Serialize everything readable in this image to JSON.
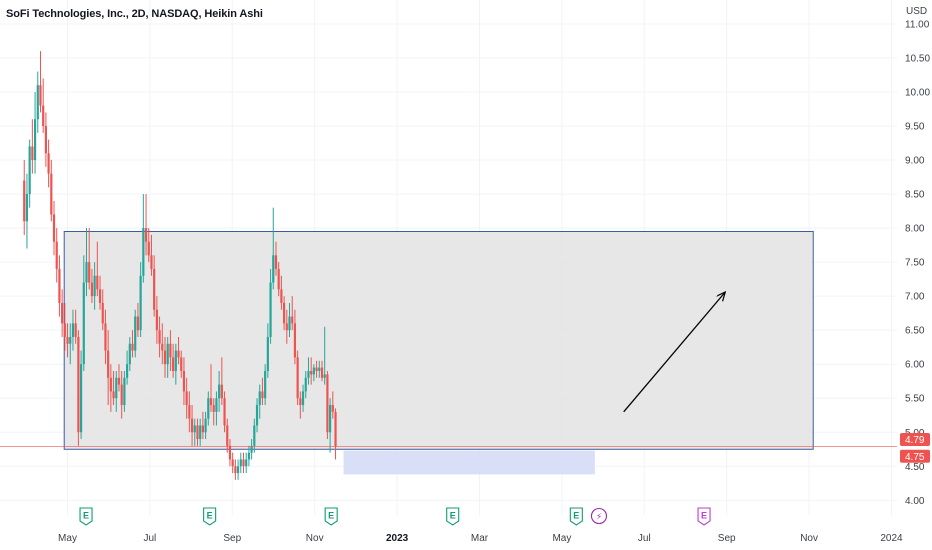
{
  "title": "SoFi Technologies, Inc., 2D, NASDAQ, Heikin Ashi",
  "colors": {
    "up": "#26a69a",
    "down": "#ef5350",
    "box_fill": "#e3e3e3",
    "box_stroke": "#3b5ba5",
    "support_fill": "#d6dcf7",
    "price_line": "#ef5350",
    "grid": "#f0f3fa"
  },
  "chart_data": {
    "type": "candlestick",
    "style": "Heikin Ashi",
    "interval": "2D",
    "currency": "USD",
    "yaxis_label": "USD",
    "ylim": [
      3.8,
      11.1
    ],
    "y_ticks": [
      "4.00",
      "4.50",
      "5.00",
      "5.50",
      "6.00",
      "6.50",
      "7.00",
      "7.50",
      "8.00",
      "8.50",
      "9.00",
      "9.50",
      "10.00",
      "10.50",
      "11.00"
    ],
    "x_ticks": [
      "May",
      "Jul",
      "Sep",
      "Nov",
      "2023",
      "Mar",
      "May",
      "Jul",
      "Sep",
      "Nov",
      "2024"
    ],
    "x_ticks_bold": [
      "2023"
    ],
    "x_tick_months": [
      4,
      6,
      8,
      10,
      12,
      14,
      16,
      18,
      20,
      22,
      24
    ],
    "grid": true,
    "price_labels": [
      {
        "text": "4.79",
        "value": 4.79
      },
      {
        "text": "4.75",
        "value": 4.75
      }
    ],
    "candles_ohlc": [
      [
        8.7,
        9.0,
        7.9,
        8.1
      ],
      [
        8.1,
        8.8,
        7.7,
        8.5
      ],
      [
        8.5,
        9.3,
        8.3,
        9.2
      ],
      [
        9.2,
        9.6,
        8.8,
        9.0
      ],
      [
        9.0,
        10.0,
        8.8,
        9.6
      ],
      [
        9.6,
        10.3,
        9.4,
        10.1
      ],
      [
        10.1,
        10.6,
        9.7,
        9.8
      ],
      [
        9.8,
        10.2,
        9.4,
        9.5
      ],
      [
        9.5,
        9.7,
        8.9,
        9.1
      ],
      [
        9.1,
        9.3,
        8.6,
        8.8
      ],
      [
        8.8,
        9.0,
        8.1,
        8.2
      ],
      [
        8.2,
        8.4,
        7.6,
        7.8
      ],
      [
        7.8,
        8.0,
        7.2,
        7.4
      ],
      [
        7.4,
        7.6,
        6.7,
        6.9
      ],
      [
        6.9,
        7.1,
        6.4,
        6.6
      ],
      [
        6.6,
        6.9,
        6.2,
        6.4
      ],
      [
        6.4,
        6.6,
        6.1,
        6.3
      ],
      [
        6.3,
        6.6,
        6.0,
        6.4
      ],
      [
        6.4,
        6.8,
        6.2,
        6.6
      ],
      [
        6.6,
        6.8,
        6.3,
        6.4
      ],
      [
        6.4,
        6.5,
        4.8,
        5.0
      ],
      [
        5.0,
        6.2,
        4.9,
        6.0
      ],
      [
        6.0,
        7.6,
        5.9,
        7.2
      ],
      [
        7.2,
        8.0,
        7.0,
        7.5
      ],
      [
        7.5,
        8.0,
        7.1,
        7.2
      ],
      [
        7.2,
        7.4,
        6.9,
        7.0
      ],
      [
        7.0,
        7.5,
        6.8,
        7.3
      ],
      [
        7.3,
        7.8,
        7.0,
        7.1
      ],
      [
        7.1,
        7.3,
        6.8,
        6.9
      ],
      [
        6.9,
        7.1,
        6.5,
        6.6
      ],
      [
        6.6,
        6.8,
        6.0,
        6.2
      ],
      [
        6.2,
        6.5,
        5.4,
        5.8
      ],
      [
        5.8,
        6.0,
        5.3,
        5.6
      ],
      [
        5.6,
        5.9,
        5.4,
        5.5
      ],
      [
        5.5,
        5.9,
        5.3,
        5.8
      ],
      [
        5.8,
        6.0,
        5.6,
        5.7
      ],
      [
        5.7,
        5.9,
        5.2,
        5.4
      ],
      [
        5.4,
        5.9,
        5.3,
        5.8
      ],
      [
        5.8,
        6.2,
        5.7,
        6.0
      ],
      [
        6.0,
        6.4,
        5.9,
        6.3
      ],
      [
        6.3,
        6.5,
        6.1,
        6.2
      ],
      [
        6.2,
        6.8,
        6.1,
        6.7
      ],
      [
        6.7,
        6.9,
        6.4,
        6.5
      ],
      [
        6.5,
        7.5,
        6.4,
        7.3
      ],
      [
        7.3,
        8.5,
        7.2,
        8.0
      ],
      [
        8.0,
        8.5,
        7.6,
        7.8
      ],
      [
        7.8,
        8.0,
        7.5,
        7.6
      ],
      [
        7.6,
        7.9,
        7.3,
        7.4
      ],
      [
        7.4,
        7.6,
        6.7,
        6.8
      ],
      [
        6.8,
        7.0,
        6.3,
        6.5
      ],
      [
        6.5,
        6.7,
        6.1,
        6.3
      ],
      [
        6.3,
        6.6,
        6.0,
        6.2
      ],
      [
        6.2,
        6.4,
        5.8,
        6.0
      ],
      [
        6.0,
        6.4,
        5.8,
        6.3
      ],
      [
        6.3,
        6.5,
        5.9,
        6.1
      ],
      [
        6.1,
        6.3,
        5.8,
        5.9
      ],
      [
        5.9,
        6.3,
        5.7,
        6.2
      ],
      [
        6.2,
        6.4,
        6.0,
        6.1
      ],
      [
        6.1,
        6.2,
        5.8,
        5.9
      ],
      [
        5.9,
        6.1,
        5.4,
        5.6
      ],
      [
        5.6,
        5.8,
        5.2,
        5.4
      ],
      [
        5.4,
        5.6,
        5.0,
        5.2
      ],
      [
        5.2,
        5.4,
        4.8,
        5.0
      ],
      [
        5.0,
        5.2,
        4.8,
        5.1
      ],
      [
        5.1,
        5.2,
        4.8,
        4.9
      ],
      [
        4.9,
        5.2,
        4.8,
        5.1
      ],
      [
        5.1,
        5.3,
        4.9,
        5.0
      ],
      [
        5.0,
        5.3,
        4.9,
        5.2
      ],
      [
        5.2,
        5.6,
        5.1,
        5.5
      ],
      [
        5.5,
        6.0,
        5.3,
        5.4
      ],
      [
        5.4,
        5.5,
        5.1,
        5.3
      ],
      [
        5.3,
        5.6,
        5.1,
        5.5
      ],
      [
        5.5,
        5.9,
        5.3,
        5.7
      ],
      [
        5.7,
        6.1,
        5.4,
        5.5
      ],
      [
        5.5,
        5.6,
        5.0,
        5.1
      ],
      [
        5.1,
        5.2,
        4.7,
        4.8
      ],
      [
        4.8,
        4.9,
        4.5,
        4.6
      ],
      [
        4.6,
        4.7,
        4.4,
        4.5
      ],
      [
        4.5,
        4.6,
        4.3,
        4.4
      ],
      [
        4.4,
        4.6,
        4.3,
        4.5
      ],
      [
        4.5,
        4.7,
        4.4,
        4.6
      ],
      [
        4.6,
        4.7,
        4.4,
        4.5
      ],
      [
        4.5,
        4.7,
        4.4,
        4.6
      ],
      [
        4.6,
        4.8,
        4.5,
        4.7
      ],
      [
        4.7,
        4.9,
        4.6,
        4.8
      ],
      [
        4.8,
        5.2,
        4.7,
        5.1
      ],
      [
        5.1,
        5.5,
        5.0,
        5.4
      ],
      [
        5.4,
        5.7,
        5.2,
        5.6
      ],
      [
        5.6,
        5.8,
        5.4,
        5.5
      ],
      [
        5.5,
        6.0,
        5.4,
        5.9
      ],
      [
        5.9,
        6.6,
        5.8,
        6.4
      ],
      [
        6.4,
        7.4,
        6.3,
        7.2
      ],
      [
        7.2,
        8.3,
        7.1,
        7.6
      ],
      [
        7.6,
        7.8,
        7.3,
        7.4
      ],
      [
        7.4,
        7.5,
        7.0,
        7.1
      ],
      [
        7.1,
        7.3,
        6.8,
        6.9
      ],
      [
        6.9,
        7.0,
        6.5,
        6.6
      ],
      [
        6.6,
        6.8,
        6.3,
        6.5
      ],
      [
        6.5,
        6.9,
        6.4,
        6.7
      ],
      [
        6.7,
        7.0,
        6.5,
        6.6
      ],
      [
        6.6,
        6.8,
        6.0,
        6.1
      ],
      [
        6.1,
        6.2,
        5.4,
        5.5
      ],
      [
        5.5,
        5.6,
        5.2,
        5.4
      ],
      [
        5.4,
        5.7,
        5.3,
        5.6
      ],
      [
        5.6,
        5.9,
        5.5,
        5.8
      ],
      [
        5.8,
        6.1,
        5.7,
        5.9
      ],
      [
        5.9,
        6.1,
        5.7,
        5.85
      ],
      [
        5.85,
        6.0,
        5.75,
        5.95
      ],
      [
        5.95,
        6.05,
        5.8,
        5.9
      ],
      [
        5.9,
        6.05,
        5.8,
        5.95
      ],
      [
        5.95,
        6.05,
        5.75,
        5.8
      ],
      [
        5.8,
        6.55,
        5.7,
        5.85
      ],
      [
        5.85,
        5.9,
        4.9,
        5.0
      ],
      [
        5.0,
        5.5,
        4.7,
        5.4
      ],
      [
        5.4,
        5.6,
        5.2,
        5.3
      ],
      [
        5.3,
        5.35,
        4.6,
        4.79
      ]
    ],
    "start_month": 2.95,
    "bar_interval_months": 0.0657,
    "annotations": [
      {
        "type": "rectangle",
        "label": "range box",
        "price_top": 7.95,
        "price_bottom": 4.75,
        "start_month": 3.92,
        "end_month": 22.1
      },
      {
        "type": "rectangle",
        "label": "support zone",
        "price_top": 4.73,
        "price_bottom": 4.38,
        "start_month": 10.7,
        "end_month": 16.8
      },
      {
        "type": "arrow",
        "from_price": 5.3,
        "to_price": 7.05,
        "from_month": 17.5,
        "to_month": 19.95
      },
      {
        "type": "horizontal_line",
        "price": 4.79
      }
    ],
    "events": [
      {
        "type": "earnings",
        "label": "E",
        "month": 4.45,
        "future": false
      },
      {
        "type": "earnings",
        "label": "E",
        "month": 7.45,
        "future": false
      },
      {
        "type": "earnings",
        "label": "E",
        "month": 10.4,
        "future": false
      },
      {
        "type": "earnings",
        "label": "E",
        "month": 13.35,
        "future": false
      },
      {
        "type": "earnings",
        "label": "E",
        "month": 16.35,
        "future": false
      },
      {
        "type": "split",
        "label": "⚡",
        "month": 16.9,
        "future": false
      },
      {
        "type": "earnings",
        "label": "E",
        "month": 19.45,
        "future": true
      }
    ]
  }
}
